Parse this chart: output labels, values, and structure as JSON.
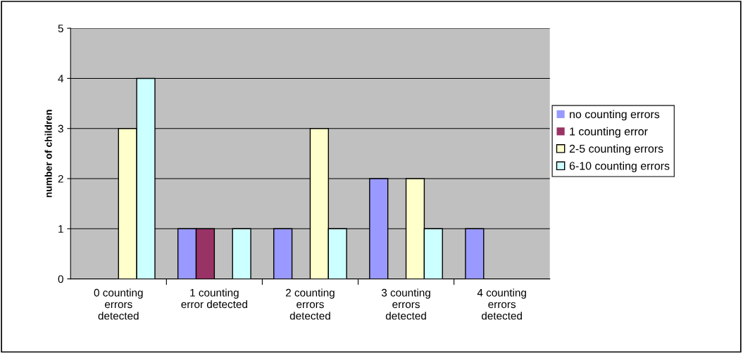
{
  "chart_data": {
    "type": "bar",
    "ylabel": "number of children",
    "categories": [
      "0 counting errors detected",
      "1 counting error detected",
      "2 counting errors detected",
      "3 counting errors detected",
      "4 counting errors detected"
    ],
    "series": [
      {
        "name": "no counting errors",
        "color": "#9999ff",
        "values": [
          0,
          1,
          1,
          2,
          1
        ]
      },
      {
        "name": "1 counting error",
        "color": "#993366",
        "values": [
          0,
          1,
          0,
          0,
          0
        ]
      },
      {
        "name": "2-5 counting errors",
        "color": "#ffffcc",
        "values": [
          3,
          0,
          3,
          2,
          0
        ]
      },
      {
        "name": "6-10 counting errors",
        "color": "#ccffff",
        "values": [
          4,
          1,
          1,
          1,
          0
        ]
      }
    ],
    "ylim": [
      0,
      5
    ],
    "yticks": [
      0,
      1,
      2,
      3,
      4,
      5
    ],
    "grid": "y",
    "legend": "right"
  }
}
